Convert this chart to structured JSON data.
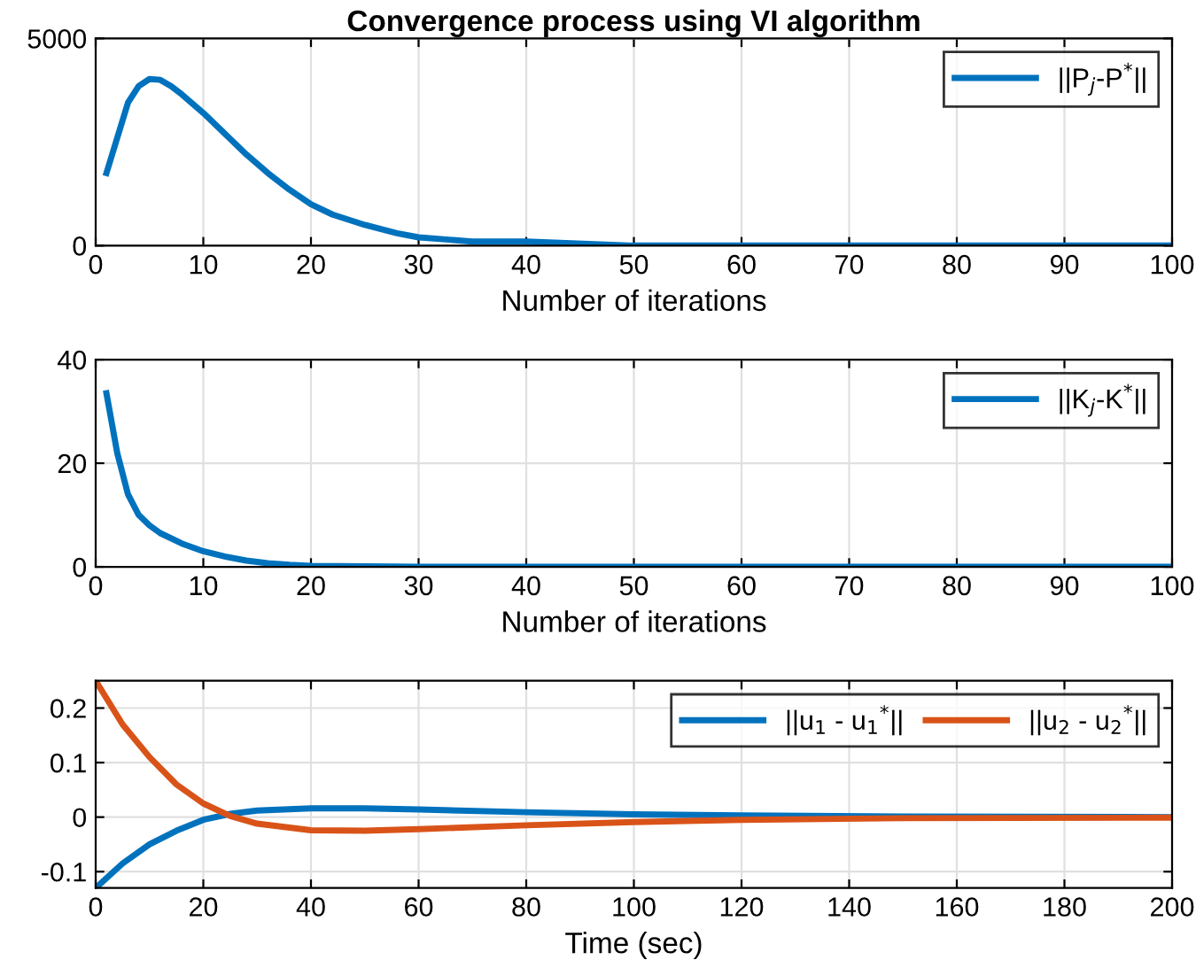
{
  "chart_data": [
    {
      "type": "line",
      "title": "Convergence process using VI algorithm",
      "xlabel": "Number of iterations",
      "xlim": [
        0,
        100
      ],
      "xticks": [
        0,
        10,
        20,
        30,
        40,
        50,
        60,
        70,
        80,
        90,
        100
      ],
      "ylim": [
        0,
        5000
      ],
      "yticks": [
        0,
        5000
      ],
      "grid": true,
      "legend": "top right",
      "series": [
        {
          "name": "||P$_{j}$-P$^{*}$||",
          "color": "#0072bd",
          "x": [
            1,
            2,
            3,
            4,
            5,
            6,
            7,
            8,
            10,
            12,
            14,
            16,
            18,
            20,
            22,
            25,
            28,
            30,
            35,
            40,
            50,
            60,
            80,
            100
          ],
          "values": [
            1750,
            2600,
            3450,
            3850,
            4020,
            4000,
            3850,
            3650,
            3200,
            2700,
            2200,
            1750,
            1350,
            1000,
            750,
            500,
            300,
            200,
            100,
            100,
            0,
            0,
            0,
            0
          ]
        }
      ]
    },
    {
      "type": "line",
      "xlabel": "Number of iterations",
      "xlim": [
        0,
        100
      ],
      "xticks": [
        0,
        10,
        20,
        30,
        40,
        50,
        60,
        70,
        80,
        90,
        100
      ],
      "ylim": [
        0,
        40
      ],
      "yticks": [
        0,
        20,
        40
      ],
      "grid": true,
      "legend": "top right",
      "series": [
        {
          "name": "||K$_{j}$-K$^{*}$||",
          "color": "#0072bd",
          "x": [
            1,
            2,
            3,
            4,
            5,
            6,
            8,
            10,
            12,
            14,
            16,
            18,
            20,
            25,
            30,
            100
          ],
          "values": [
            33.5,
            22,
            14,
            10,
            8,
            6.5,
            4.5,
            3,
            2,
            1.2,
            0.7,
            0.4,
            0.2,
            0.1,
            0,
            0
          ]
        }
      ]
    },
    {
      "type": "line",
      "xlabel": "Time (sec)",
      "xlim": [
        0,
        200
      ],
      "xticks": [
        0,
        20,
        40,
        60,
        80,
        100,
        120,
        140,
        160,
        180,
        200
      ],
      "ylim": [
        -0.13,
        0.25
      ],
      "yticks": [
        -0.1,
        0,
        0.1,
        0.2
      ],
      "grid": true,
      "legend": "top right",
      "series": [
        {
          "name": "||u$_{1}$ - u$_{1}$$^{*}$||",
          "color": "#0072bd",
          "x": [
            0,
            5,
            10,
            15,
            20,
            25,
            30,
            40,
            50,
            60,
            80,
            100,
            120,
            150,
            200
          ],
          "values": [
            -0.13,
            -0.085,
            -0.05,
            -0.025,
            -0.005,
            0.006,
            0.012,
            0.016,
            0.016,
            0.014,
            0.009,
            0.005,
            0.003,
            0.001,
            0
          ]
        },
        {
          "name": "||u$_{2}$ - u$_{2}$$^{*}$||",
          "color": "#d95319",
          "x": [
            0,
            5,
            10,
            15,
            20,
            25,
            30,
            40,
            50,
            60,
            80,
            100,
            120,
            150,
            200
          ],
          "values": [
            0.25,
            0.17,
            0.11,
            0.06,
            0.025,
            0.002,
            -0.012,
            -0.024,
            -0.025,
            -0.022,
            -0.015,
            -0.009,
            -0.005,
            -0.002,
            -0.001
          ]
        }
      ]
    }
  ]
}
